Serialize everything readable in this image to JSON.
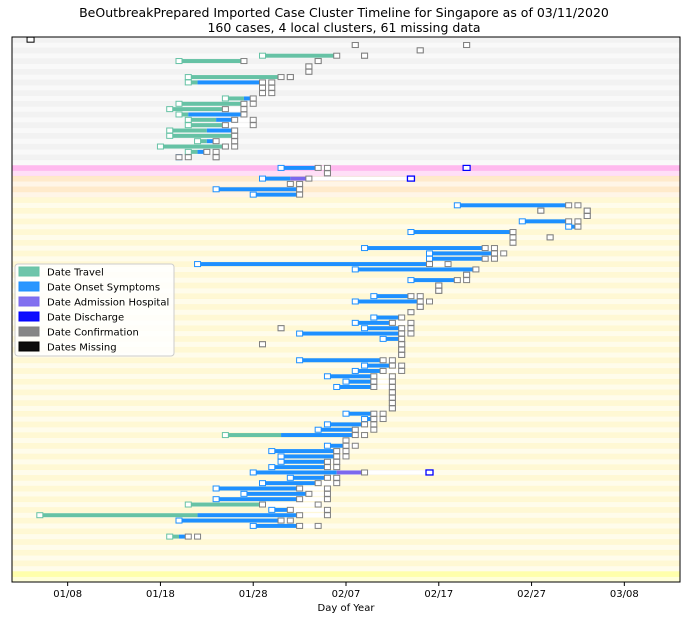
{
  "chart_data": {
    "type": "timeline",
    "title": "BeOutbreakPrepared Imported Case Cluster Timeline for Singapore as of 03/11/2020",
    "subtitle": "160 cases, 4 local clusters, 61 missing data",
    "xlabel": "Day of Year",
    "ylabel": "",
    "x_ticks": [
      "01/08",
      "01/18",
      "01/28",
      "02/07",
      "02/17",
      "02/27",
      "03/08"
    ],
    "x_tick_days": [
      8,
      18,
      28,
      38,
      48,
      58,
      68
    ],
    "xlim": [
      2,
      74
    ],
    "grid": false,
    "legend_position": "center-left",
    "legend": [
      {
        "label": "Date Travel",
        "color": "#66c2a5"
      },
      {
        "label": "Date Onset Symptoms",
        "color": "#1e90ff"
      },
      {
        "label": "Date Admission Hospital",
        "color": "#7b68ee"
      },
      {
        "label": "Date Discharge",
        "color": "#0000ff"
      },
      {
        "label": "Date Confirmation",
        "color": "#808080"
      },
      {
        "label": "Dates Missing",
        "color": "#000000"
      }
    ],
    "colors": {
      "travel": "#66c2a5",
      "onset": "#1e90ff",
      "admission": "#7b68ee",
      "discharge": "#0000ff",
      "confirmation": "#808080",
      "missing": "#000000"
    },
    "clusters": [
      {
        "rows": [
          0,
          23
        ],
        "color": "#e8e8e8"
      },
      {
        "rows": [
          24,
          25
        ],
        "color": "#ff80e0"
      },
      {
        "rows": [
          26,
          29
        ],
        "color": "#ffd9a0"
      },
      {
        "rows": [
          30,
          99
        ],
        "color": "#fff2b0"
      },
      {
        "rows": [
          100,
          101
        ],
        "color": "#ffff66"
      }
    ],
    "cases": [
      {
        "row": 0,
        "missing": 4
      },
      {
        "row": 1,
        "start": 39,
        "conf": 39,
        "end": 39
      },
      {
        "row": 1,
        "start": 51,
        "conf": 51,
        "end": 51
      },
      {
        "row": 2,
        "start": 46,
        "conf": 46,
        "end": 46
      },
      {
        "row": 3,
        "travel": 29,
        "start": 29,
        "conf": 37,
        "end": 37
      },
      {
        "row": 3,
        "start": 40,
        "conf": 40,
        "end": 40
      },
      {
        "row": 4,
        "travel": 20,
        "start": 20,
        "conf": 27,
        "end": 27
      },
      {
        "row": 4,
        "start": 35,
        "conf": 35,
        "end": 35
      },
      {
        "row": 5,
        "start": 34,
        "conf": 34,
        "end": 34
      },
      {
        "row": 6,
        "start": 34,
        "conf": 34,
        "end": 34
      },
      {
        "row": 7,
        "travel": 21,
        "start": 21,
        "conf": 31,
        "end": 31
      },
      {
        "row": 7,
        "start": 32,
        "conf": 32,
        "end": 32
      },
      {
        "row": 8,
        "travel": 21,
        "onset": 22,
        "start": 21,
        "conf": 29,
        "end": 30
      },
      {
        "row": 9,
        "start": 29,
        "conf": 29,
        "end": 30
      },
      {
        "row": 10,
        "start": 29,
        "conf": 29,
        "end": 30
      },
      {
        "row": 11,
        "travel": 25,
        "onset": 27,
        "start": 25,
        "conf": 28,
        "end": 28
      },
      {
        "row": 12,
        "travel": 20,
        "start": 20,
        "conf": 27,
        "end": 28
      },
      {
        "row": 13,
        "travel": 19,
        "start": 19,
        "conf": 25,
        "end": 27
      },
      {
        "row": 14,
        "travel": 20,
        "onset": 21,
        "start": 20,
        "conf": 27,
        "end": 27
      },
      {
        "row": 15,
        "travel": 21,
        "onset": 24,
        "start": 21,
        "conf": 26,
        "end": 28
      },
      {
        "row": 16,
        "travel": 21,
        "start": 21,
        "conf": 25,
        "end": 28
      },
      {
        "row": 17,
        "travel": 19,
        "onset": 23,
        "start": 19,
        "conf": 26,
        "end": 26
      },
      {
        "row": 18,
        "travel": 19,
        "start": 19,
        "conf": 26,
        "end": 26
      },
      {
        "row": 19,
        "travel": 22,
        "onset": 23,
        "start": 22,
        "conf": 24,
        "end": 26
      },
      {
        "row": 20,
        "travel": 18,
        "start": 18,
        "conf": 25,
        "end": 26
      },
      {
        "row": 21,
        "travel": 21,
        "onset": 22,
        "start": 21,
        "conf": 23,
        "end": 24
      },
      {
        "row": 22,
        "onset": 20,
        "start": 20,
        "conf": 20,
        "end": 21
      },
      {
        "row": 22,
        "start": 24,
        "conf": 24,
        "end": 24
      },
      {
        "row": 24,
        "onset": 31,
        "start": 31,
        "conf": 35,
        "end": 36
      },
      {
        "row": 24,
        "start": 51,
        "conf": 51,
        "end": 51,
        "discharge_only": true
      },
      {
        "row": 25,
        "start": 36,
        "conf": 36,
        "end": 36
      },
      {
        "row": 26,
        "onset": 29,
        "admission": 32,
        "start": 29,
        "conf": 34,
        "discharge": 45,
        "end": 45
      },
      {
        "row": 27,
        "start": 32,
        "conf": 33,
        "end": 33
      },
      {
        "row": 28,
        "onset": 24,
        "start": 24,
        "conf": 33,
        "end": 33
      },
      {
        "row": 29,
        "onset": 28,
        "start": 28,
        "conf": 33,
        "end": 33
      },
      {
        "row": 31,
        "onset": 50,
        "start": 50,
        "conf": 62,
        "end": 63
      },
      {
        "row": 32,
        "start": 59,
        "conf": 59,
        "end": 59
      },
      {
        "row": 32,
        "start": 64,
        "conf": 64,
        "end": 64
      },
      {
        "row": 33,
        "start": 64,
        "conf": 64,
        "end": 64
      },
      {
        "row": 34,
        "onset": 57,
        "start": 57,
        "conf": 62,
        "end": 63
      },
      {
        "row": 35,
        "onset": 62,
        "start": 62,
        "conf": 63,
        "end": 63
      },
      {
        "row": 36,
        "onset": 45,
        "start": 45,
        "conf": 56,
        "end": 56
      },
      {
        "row": 37,
        "start": 56,
        "conf": 56,
        "end": 56
      },
      {
        "row": 37,
        "start": 60,
        "conf": 60,
        "end": 60
      },
      {
        "row": 38,
        "start": 56,
        "conf": 56,
        "end": 56
      },
      {
        "row": 39,
        "onset": 40,
        "start": 40,
        "conf": 53,
        "end": 54
      },
      {
        "row": 40,
        "onset": 47,
        "start": 47,
        "conf": 54,
        "end": 55
      },
      {
        "row": 41,
        "onset": 47,
        "start": 47,
        "conf": 53,
        "end": 54
      },
      {
        "row": 42,
        "onset": 22,
        "start": 22,
        "conf": 47,
        "end": 49
      },
      {
        "row": 43,
        "onset": 39,
        "start": 39,
        "conf": 52,
        "end": 52
      },
      {
        "row": 44,
        "start": 51,
        "conf": 51,
        "end": 51
      },
      {
        "row": 45,
        "onset": 45,
        "start": 45,
        "conf": 50,
        "end": 51
      },
      {
        "row": 46,
        "start": 48,
        "conf": 48,
        "end": 48
      },
      {
        "row": 47,
        "start": 48,
        "conf": 48,
        "end": 48
      },
      {
        "row": 48,
        "onset": 41,
        "start": 41,
        "conf": 45,
        "end": 46
      },
      {
        "row": 49,
        "onset": 39,
        "start": 39,
        "conf": 46,
        "end": 47
      },
      {
        "row": 50,
        "start": 46,
        "conf": 46,
        "end": 46
      },
      {
        "row": 51,
        "start": 45,
        "conf": 45,
        "end": 45
      },
      {
        "row": 52,
        "onset": 41,
        "start": 41,
        "conf": 44,
        "end": 44
      },
      {
        "row": 53,
        "onset": 39,
        "start": 39,
        "conf": 43,
        "end": 45
      },
      {
        "row": 54,
        "onset": 40,
        "start": 40,
        "conf": 44,
        "end": 45
      },
      {
        "row": 54,
        "start": 31,
        "conf": 31,
        "end": 31
      },
      {
        "row": 55,
        "onset": 33,
        "start": 33,
        "conf": 44,
        "end": 45
      },
      {
        "row": 56,
        "onset": 42,
        "start": 42,
        "conf": 44,
        "end": 44
      },
      {
        "row": 57,
        "start": 29,
        "conf": 29,
        "end": 29
      },
      {
        "row": 57,
        "start": 44,
        "conf": 44,
        "end": 44
      },
      {
        "row": 58,
        "start": 44,
        "conf": 44,
        "end": 44
      },
      {
        "row": 59,
        "start": 44,
        "conf": 44,
        "end": 44
      },
      {
        "row": 60,
        "onset": 33,
        "start": 33,
        "conf": 42,
        "end": 43
      },
      {
        "row": 61,
        "onset": 40,
        "start": 40,
        "conf": 43,
        "end": 44
      },
      {
        "row": 62,
        "onset": 39,
        "start": 39,
        "conf": 42,
        "end": 44
      },
      {
        "row": 63,
        "onset": 36,
        "start": 36,
        "conf": 41,
        "end": 43
      },
      {
        "row": 64,
        "onset": 38,
        "start": 38,
        "conf": 41,
        "end": 43
      },
      {
        "row": 65,
        "onset": 37,
        "start": 37,
        "conf": 41,
        "end": 43
      },
      {
        "row": 66,
        "start": 43,
        "conf": 43,
        "end": 43
      },
      {
        "row": 67,
        "start": 43,
        "conf": 43,
        "end": 43
      },
      {
        "row": 68,
        "start": 43,
        "conf": 43,
        "end": 43
      },
      {
        "row": 69,
        "start": 43,
        "conf": 43,
        "end": 43
      },
      {
        "row": 70,
        "onset": 38,
        "start": 38,
        "conf": 41,
        "end": 42
      },
      {
        "row": 71,
        "onset": 40,
        "start": 40,
        "conf": 41,
        "end": 42
      },
      {
        "row": 72,
        "onset": 36,
        "start": 36,
        "conf": 40,
        "end": 41
      },
      {
        "row": 73,
        "onset": 35,
        "start": 35,
        "conf": 39,
        "end": 41
      },
      {
        "row": 74,
        "travel": 25,
        "onset": 31,
        "start": 25,
        "conf": 39,
        "end": 40
      },
      {
        "row": 75,
        "start": 38,
        "conf": 38,
        "end": 38
      },
      {
        "row": 76,
        "onset": 36,
        "start": 36,
        "conf": 38,
        "end": 39
      },
      {
        "row": 77,
        "onset": 30,
        "start": 30,
        "conf": 37,
        "end": 38
      },
      {
        "row": 78,
        "onset": 31,
        "start": 31,
        "conf": 37,
        "end": 38
      },
      {
        "row": 79,
        "onset": 31,
        "start": 31,
        "conf": 36,
        "end": 37
      },
      {
        "row": 80,
        "onset": 30,
        "start": 30,
        "conf": 36,
        "end": 37
      },
      {
        "row": 81,
        "onset": 28,
        "admission": 37,
        "start": 28,
        "conf": 40,
        "discharge": 47,
        "end": 47
      },
      {
        "row": 82,
        "onset": 32,
        "start": 32,
        "conf": 36,
        "end": 37
      },
      {
        "row": 83,
        "onset": 29,
        "start": 29,
        "conf": 35,
        "end": 37
      },
      {
        "row": 84,
        "onset": 24,
        "start": 24,
        "conf": 33,
        "end": 36
      },
      {
        "row": 85,
        "onset": 27,
        "start": 27,
        "conf": 34,
        "end": 36
      },
      {
        "row": 86,
        "onset": 24,
        "start": 24,
        "conf": 33,
        "end": 36
      },
      {
        "row": 87,
        "travel": 21,
        "start": 21,
        "conf": 29,
        "end": 35
      },
      {
        "row": 88,
        "onset": 30,
        "start": 30,
        "conf": 32,
        "end": 36
      },
      {
        "row": 89,
        "travel": 5,
        "onset": 22,
        "start": 5,
        "conf": 33,
        "end": 36
      },
      {
        "row": 90,
        "onset": 20,
        "start": 20,
        "conf": 31,
        "end": 32
      },
      {
        "row": 91,
        "onset": 28,
        "start": 28,
        "conf": 33,
        "end": 35
      },
      {
        "row": 93,
        "travel": 19,
        "onset": 20,
        "start": 19,
        "conf": 21,
        "end": 22
      }
    ]
  }
}
